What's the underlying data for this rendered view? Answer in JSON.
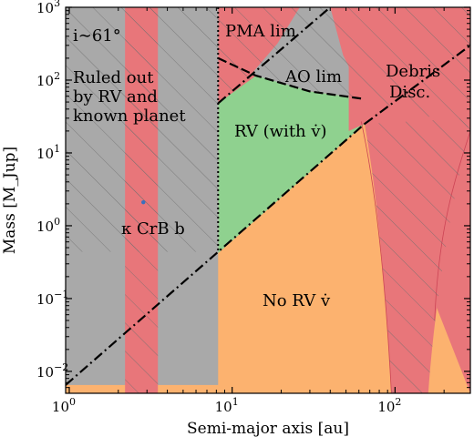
{
  "chart_data": {
    "type": "area",
    "xlabel": "Semi-major axis [au]",
    "ylabel": "Mass [M_Jup]",
    "xscale": "log",
    "yscale": "log",
    "xlim": [
      0.95,
      290
    ],
    "ylim": [
      0.005,
      1000
    ],
    "x_tick_labels": [
      {
        "value": 1,
        "base": "10",
        "exp": "0"
      },
      {
        "value": 10,
        "base": "10",
        "exp": "1"
      },
      {
        "value": 100,
        "base": "10",
        "exp": "2"
      }
    ],
    "y_tick_labels": [
      {
        "value": 0.01,
        "base": "10",
        "exp": "−2"
      },
      {
        "value": 0.1,
        "base": "10",
        "exp": "−1"
      },
      {
        "value": 1,
        "base": "10",
        "exp": "0"
      },
      {
        "value": 10,
        "base": "10",
        "exp": "1"
      },
      {
        "value": 100,
        "base": "10",
        "exp": "2"
      },
      {
        "value": 1000,
        "base": "10",
        "exp": "3"
      }
    ],
    "colors": {
      "gray_region": "#a9a9a9",
      "red_region": "#e8767a",
      "orange_region": "#fcb26f",
      "green_region": "#8fd18f",
      "boundary_line": "#000000",
      "hatch": "#6e6e6e"
    },
    "planet": {
      "x": 2.85,
      "y": 2.1,
      "label": "κ CrB b"
    },
    "regions": {
      "rv_excluded_x_range": [
        0.95,
        8.2
      ],
      "red_band_1_x_range": [
        2.2,
        3.5
      ],
      "debris_disc_x_range": [
        52,
        290
      ]
    },
    "lines": {
      "rv_trend_limit": [
        [
          0.95,
          0.0065
        ],
        [
          65,
          25
        ]
      ],
      "pma_limit": [
        [
          8.2,
          48
        ],
        [
          40,
          1000
        ]
      ],
      "ao_limit": [
        [
          8.2,
          200
        ],
        [
          14,
          115
        ],
        [
          30,
          70
        ],
        [
          65,
          55
        ]
      ]
    },
    "annotations": {
      "inclination": "i∼61°",
      "ruled_out_1": "Ruled out",
      "ruled_out_2": "by RV and",
      "ruled_out_3": "known planet",
      "planet": "κ CrB b",
      "pma": "PMA lim",
      "ao": "AO lim",
      "rv_with": "RV (with v̇)",
      "no_rv": "No RV v̇",
      "debris_1": "Debris",
      "debris_2": "Disc."
    }
  }
}
